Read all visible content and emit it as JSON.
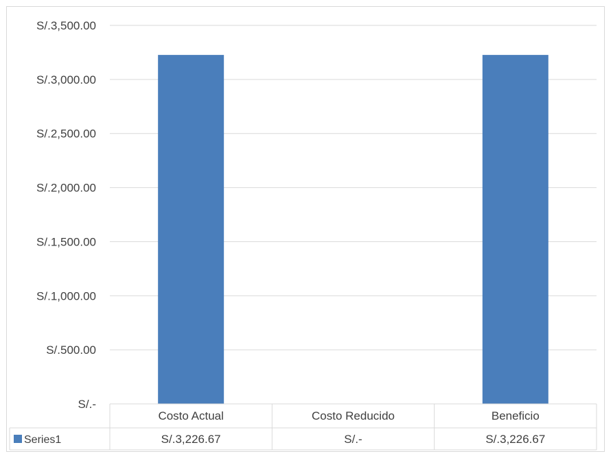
{
  "chart_data": {
    "type": "bar",
    "categories": [
      "Costo Actual",
      "Costo Reducido",
      "Beneficio"
    ],
    "series": [
      {
        "name": "Series1",
        "values": [
          3226.67,
          0,
          3226.67
        ],
        "value_labels": [
          "S/.3,226.67",
          "S/.-",
          "S/.3,226.67"
        ],
        "color": "#4a7ebb"
      }
    ],
    "ylim": [
      0,
      3500
    ],
    "y_ticks": [
      {
        "value": 3500,
        "label": "S/.3,500.00"
      },
      {
        "value": 3000,
        "label": "S/.3,000.00"
      },
      {
        "value": 2500,
        "label": "S/.2,500.00"
      },
      {
        "value": 2000,
        "label": "S/.2,000.00"
      },
      {
        "value": 1500,
        "label": "S/.1,500.00"
      },
      {
        "value": 1000,
        "label": "S/.1,000.00"
      },
      {
        "value": 500,
        "label": "S/.500.00"
      },
      {
        "value": 0,
        "label": "S/.-"
      }
    ],
    "grid": true,
    "legend": "data-table",
    "colors": {
      "gridline": "#d9d9d9",
      "text": "#404040",
      "bar": "#4a7ebb"
    }
  }
}
